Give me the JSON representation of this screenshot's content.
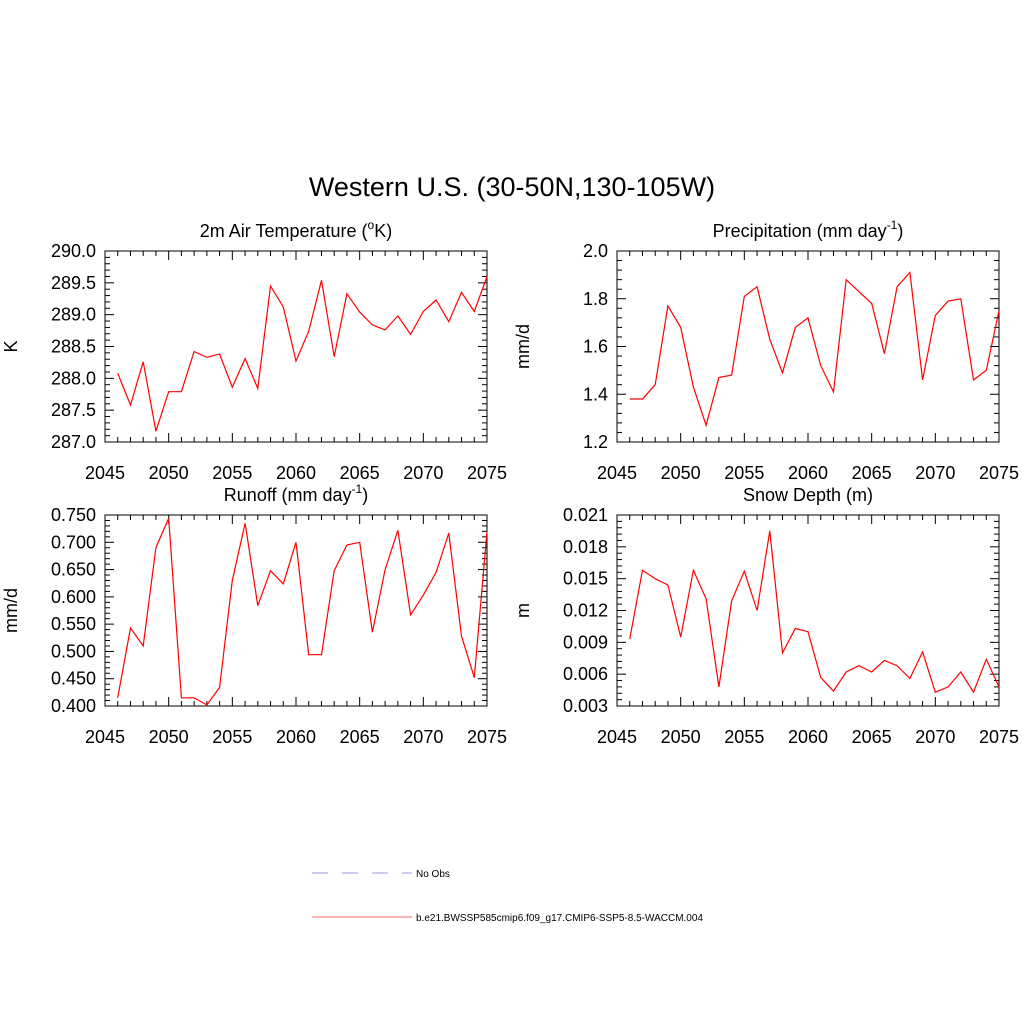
{
  "figure": {
    "title": "Western U.S. (30-50N,130-105W)"
  },
  "chart_data": [
    {
      "type": "line",
      "title_main": "2m Air Temperature (",
      "title_sup": "o",
      "title_end": "K)",
      "ylabel": "K",
      "xlim": [
        2045,
        2075
      ],
      "ylim": [
        287.0,
        290.0
      ],
      "xticks": [
        "2045",
        "2050",
        "2055",
        "2060",
        "2065",
        "2070",
        "2075"
      ],
      "yticks": [
        "287.0",
        "287.5",
        "288.0",
        "288.5",
        "289.0",
        "289.5",
        "290.0"
      ],
      "series": [
        {
          "color": "#ff0000",
          "x": [
            2046,
            2047,
            2048,
            2049,
            2050,
            2051,
            2052,
            2053,
            2054,
            2055,
            2056,
            2057,
            2058,
            2059,
            2060,
            2061,
            2062,
            2063,
            2064,
            2065,
            2066,
            2067,
            2068,
            2069,
            2070,
            2071,
            2072,
            2073,
            2074,
            2075
          ],
          "y": [
            288.08,
            287.58,
            288.26,
            287.17,
            287.79,
            287.79,
            288.42,
            288.33,
            288.38,
            287.86,
            288.31,
            287.84,
            289.45,
            289.12,
            288.27,
            288.74,
            289.54,
            288.34,
            289.33,
            289.04,
            288.84,
            288.76,
            288.98,
            288.69,
            289.05,
            289.23,
            288.89,
            289.35,
            289.05,
            289.6
          ]
        }
      ]
    },
    {
      "type": "line",
      "title_main": "Precipitation (mm day",
      "title_sup": "-1",
      "title_end": ")",
      "ylabel": "mm/d",
      "xlim": [
        2045,
        2075
      ],
      "ylim": [
        1.2,
        2.0
      ],
      "xticks": [
        "2045",
        "2050",
        "2055",
        "2060",
        "2065",
        "2070",
        "2075"
      ],
      "yticks": [
        "1.2",
        "1.4",
        "1.6",
        "1.8",
        "2.0"
      ],
      "series": [
        {
          "color": "#ff0000",
          "x": [
            2046,
            2047,
            2048,
            2049,
            2050,
            2051,
            2052,
            2053,
            2054,
            2055,
            2056,
            2057,
            2058,
            2059,
            2060,
            2061,
            2062,
            2063,
            2064,
            2065,
            2066,
            2067,
            2068,
            2069,
            2070,
            2071,
            2072,
            2073,
            2074,
            2075
          ],
          "y": [
            1.38,
            1.38,
            1.44,
            1.77,
            1.68,
            1.43,
            1.27,
            1.47,
            1.48,
            1.81,
            1.85,
            1.63,
            1.49,
            1.68,
            1.72,
            1.52,
            1.41,
            1.88,
            1.83,
            1.78,
            1.57,
            1.85,
            1.91,
            1.46,
            1.73,
            1.79,
            1.8,
            1.46,
            1.5,
            1.75
          ]
        }
      ]
    },
    {
      "type": "line",
      "title_main": "Runoff (mm day",
      "title_sup": "-1",
      "title_end": ")",
      "ylabel": "mm/d",
      "xlim": [
        2045,
        2075
      ],
      "ylim": [
        0.4,
        0.75
      ],
      "xticks": [
        "2045",
        "2050",
        "2055",
        "2060",
        "2065",
        "2070",
        "2075"
      ],
      "yticks": [
        "0.400",
        "0.450",
        "0.500",
        "0.550",
        "0.600",
        "0.650",
        "0.700",
        "0.750"
      ],
      "series": [
        {
          "color": "#ff0000",
          "x": [
            2046,
            2047,
            2048,
            2049,
            2050,
            2051,
            2052,
            2053,
            2054,
            2055,
            2056,
            2057,
            2058,
            2059,
            2060,
            2061,
            2062,
            2063,
            2064,
            2065,
            2066,
            2067,
            2068,
            2069,
            2070,
            2071,
            2072,
            2073,
            2074,
            2075
          ],
          "y": [
            0.415,
            0.543,
            0.51,
            0.69,
            0.744,
            0.415,
            0.415,
            0.402,
            0.434,
            0.63,
            0.735,
            0.584,
            0.648,
            0.624,
            0.7,
            0.494,
            0.494,
            0.648,
            0.695,
            0.7,
            0.535,
            0.65,
            0.722,
            0.567,
            0.603,
            0.645,
            0.717,
            0.528,
            0.452,
            0.72
          ]
        }
      ]
    },
    {
      "type": "line",
      "title_main": "Snow Depth (m)",
      "title_sup": "",
      "title_end": "",
      "ylabel": "m",
      "xlim": [
        2045,
        2075
      ],
      "ylim": [
        0.003,
        0.021
      ],
      "xticks": [
        "2045",
        "2050",
        "2055",
        "2060",
        "2065",
        "2070",
        "2075"
      ],
      "yticks": [
        "0.003",
        "0.006",
        "0.009",
        "0.012",
        "0.015",
        "0.018",
        "0.021"
      ],
      "series": [
        {
          "color": "#ff0000",
          "x": [
            2046,
            2047,
            2048,
            2049,
            2050,
            2051,
            2052,
            2053,
            2054,
            2055,
            2056,
            2057,
            2058,
            2059,
            2060,
            2061,
            2062,
            2063,
            2064,
            2065,
            2066,
            2067,
            2068,
            2069,
            2070,
            2071,
            2072,
            2073,
            2074,
            2075
          ],
          "y": [
            0.0093,
            0.0158,
            0.015,
            0.0144,
            0.0095,
            0.0158,
            0.0131,
            0.0048,
            0.0129,
            0.0157,
            0.012,
            0.0195,
            0.008,
            0.0103,
            0.01,
            0.0057,
            0.0044,
            0.0062,
            0.0068,
            0.0062,
            0.0073,
            0.0068,
            0.0056,
            0.0081,
            0.0043,
            0.0048,
            0.0062,
            0.0043,
            0.0074,
            0.0048
          ]
        }
      ]
    }
  ],
  "legend": [
    {
      "label": "No Obs",
      "color": "#9999dd",
      "dash": true
    },
    {
      "label": "b.e21.BWSSP585cmip6.f09_g17.CMIP6-SSP5-8.5-WACCM.004",
      "color": "#ff6666",
      "dash": false
    }
  ]
}
